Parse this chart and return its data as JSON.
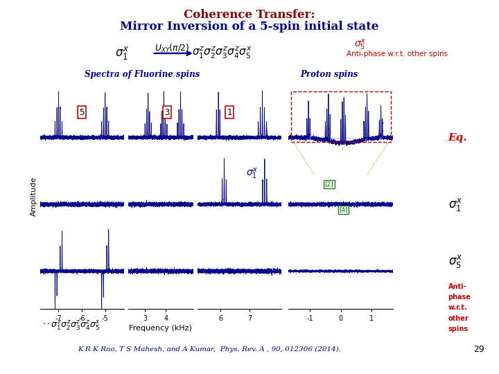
{
  "title_line1": "Coherence Transfer:",
  "title_line2": "Mirror Inversion of a 5-spin initial state",
  "title_color": "#8B0000",
  "title2_color": "#00008B",
  "bg_color": "#ffffff",
  "fluorine_label": "Spectra of Fluorine spins",
  "proton_label": "Proton spins",
  "xlabel": "Frequency (kHz)",
  "ylabel": "Amplitude",
  "citation": "K R K Rao, T S Mahesh, and A Kumar,  Phys. Rev. A , 90, 012306 (2014).",
  "page_num": "29",
  "signal_color": "#00008B",
  "label_color_red": "#CC0000",
  "label_color_darkblue": "#00008B",
  "panel1_xlim": [
    -7.8,
    -4.2
  ],
  "panel1_xticks": [
    -7,
    -6,
    -5
  ],
  "panel2_xlim": [
    2.2,
    5.3
  ],
  "panel2_xticks": [
    3,
    4
  ],
  "panel3_xlim": [
    5.2,
    8.1
  ],
  "panel3_xticks": [
    6,
    7
  ],
  "panel4_xlim": [
    -1.7,
    1.7
  ],
  "panel4_xticks": [
    -1,
    0,
    1
  ]
}
